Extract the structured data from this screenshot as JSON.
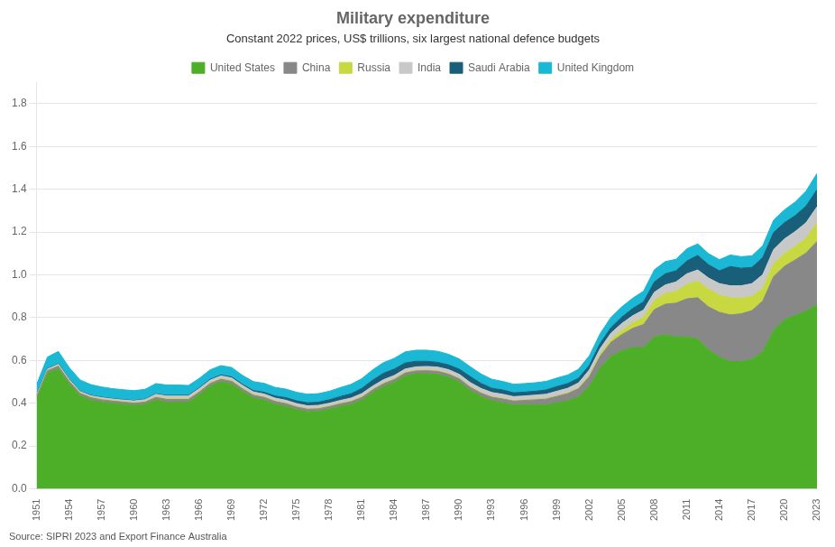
{
  "chart_data": {
    "type": "area",
    "stacked": true,
    "title": "Military expenditure",
    "subtitle": "Constant 2022 prices, US$ trillions, six largest national defence budgets",
    "source": "Source: SIPRI 2023 and Export Finance Australia",
    "x": [
      1951,
      1952,
      1953,
      1954,
      1955,
      1956,
      1957,
      1958,
      1959,
      1960,
      1961,
      1962,
      1963,
      1964,
      1965,
      1966,
      1967,
      1968,
      1969,
      1970,
      1971,
      1972,
      1973,
      1974,
      1975,
      1976,
      1977,
      1978,
      1979,
      1980,
      1981,
      1982,
      1983,
      1984,
      1985,
      1986,
      1987,
      1988,
      1989,
      1990,
      1991,
      1992,
      1993,
      1994,
      1995,
      1996,
      1997,
      1998,
      1999,
      2000,
      2001,
      2002,
      2003,
      2004,
      2005,
      2006,
      2007,
      2008,
      2009,
      2010,
      2011,
      2012,
      2013,
      2014,
      2015,
      2016,
      2017,
      2018,
      2019,
      2020,
      2021,
      2022,
      2023
    ],
    "series": [
      {
        "name": "United States",
        "color": "#4daf27",
        "values": [
          0.42,
          0.54,
          0.56,
          0.49,
          0.435,
          0.415,
          0.405,
          0.4,
          0.395,
          0.39,
          0.395,
          0.415,
          0.405,
          0.405,
          0.405,
          0.44,
          0.48,
          0.5,
          0.49,
          0.455,
          0.425,
          0.415,
          0.395,
          0.385,
          0.37,
          0.36,
          0.362,
          0.372,
          0.385,
          0.395,
          0.415,
          0.45,
          0.478,
          0.498,
          0.528,
          0.538,
          0.538,
          0.535,
          0.522,
          0.5,
          0.46,
          0.432,
          0.412,
          0.402,
          0.392,
          0.392,
          0.392,
          0.392,
          0.402,
          0.412,
          0.43,
          0.48,
          0.565,
          0.62,
          0.645,
          0.66,
          0.66,
          0.71,
          0.72,
          0.71,
          0.71,
          0.7,
          0.65,
          0.615,
          0.595,
          0.595,
          0.605,
          0.64,
          0.74,
          0.79,
          0.81,
          0.83,
          0.86
        ]
      },
      {
        "name": "China",
        "color": "#888888",
        "values": [
          0.01,
          0.012,
          0.013,
          0.012,
          0.011,
          0.011,
          0.011,
          0.01,
          0.01,
          0.01,
          0.01,
          0.012,
          0.013,
          0.013,
          0.013,
          0.012,
          0.012,
          0.012,
          0.012,
          0.012,
          0.012,
          0.012,
          0.013,
          0.013,
          0.012,
          0.012,
          0.012,
          0.012,
          0.012,
          0.012,
          0.012,
          0.012,
          0.013,
          0.013,
          0.013,
          0.013,
          0.014,
          0.014,
          0.014,
          0.014,
          0.015,
          0.015,
          0.016,
          0.018,
          0.018,
          0.021,
          0.024,
          0.027,
          0.03,
          0.033,
          0.038,
          0.044,
          0.055,
          0.065,
          0.076,
          0.09,
          0.108,
          0.128,
          0.143,
          0.158,
          0.178,
          0.193,
          0.2,
          0.21,
          0.218,
          0.223,
          0.228,
          0.238,
          0.252,
          0.25,
          0.26,
          0.272,
          0.296
        ]
      },
      {
        "name": "Russia",
        "color": "#c8d840",
        "values": [
          0.003,
          0.003,
          0.003,
          0.003,
          0.003,
          0.003,
          0.003,
          0.003,
          0.003,
          0.003,
          0.003,
          0.003,
          0.003,
          0.003,
          0.003,
          0.003,
          0.003,
          0.003,
          0.003,
          0.003,
          0.003,
          0.003,
          0.003,
          0.003,
          0.003,
          0.003,
          0.003,
          0.003,
          0.003,
          0.003,
          0.003,
          0.003,
          0.003,
          0.003,
          0.003,
          0.003,
          0.003,
          0.003,
          0.003,
          0.003,
          0.003,
          0.003,
          0.003,
          0.003,
          0.003,
          0.003,
          0.003,
          0.003,
          0.003,
          0.003,
          0.004,
          0.006,
          0.008,
          0.013,
          0.02,
          0.026,
          0.033,
          0.043,
          0.05,
          0.055,
          0.068,
          0.078,
          0.083,
          0.08,
          0.08,
          0.073,
          0.066,
          0.06,
          0.06,
          0.06,
          0.063,
          0.07,
          0.088
        ]
      },
      {
        "name": "India",
        "color": "#c8c8c8",
        "values": [
          0.005,
          0.005,
          0.006,
          0.006,
          0.006,
          0.006,
          0.007,
          0.007,
          0.007,
          0.008,
          0.009,
          0.012,
          0.013,
          0.013,
          0.013,
          0.013,
          0.013,
          0.013,
          0.013,
          0.013,
          0.013,
          0.013,
          0.013,
          0.013,
          0.013,
          0.013,
          0.013,
          0.013,
          0.013,
          0.014,
          0.015,
          0.015,
          0.016,
          0.016,
          0.016,
          0.016,
          0.017,
          0.017,
          0.018,
          0.018,
          0.019,
          0.019,
          0.019,
          0.019,
          0.018,
          0.018,
          0.019,
          0.02,
          0.021,
          0.022,
          0.023,
          0.026,
          0.028,
          0.03,
          0.032,
          0.033,
          0.035,
          0.038,
          0.04,
          0.044,
          0.049,
          0.052,
          0.052,
          0.054,
          0.056,
          0.058,
          0.06,
          0.063,
          0.066,
          0.068,
          0.07,
          0.072,
          0.074
        ]
      },
      {
        "name": "Saudi Arabia",
        "color": "#1a5f7a",
        "values": [
          0.002,
          0.002,
          0.002,
          0.002,
          0.002,
          0.002,
          0.002,
          0.002,
          0.002,
          0.002,
          0.002,
          0.002,
          0.003,
          0.003,
          0.003,
          0.003,
          0.004,
          0.004,
          0.005,
          0.005,
          0.006,
          0.008,
          0.01,
          0.012,
          0.013,
          0.014,
          0.015,
          0.016,
          0.018,
          0.02,
          0.024,
          0.028,
          0.03,
          0.03,
          0.028,
          0.026,
          0.024,
          0.022,
          0.022,
          0.024,
          0.028,
          0.024,
          0.02,
          0.02,
          0.018,
          0.018,
          0.018,
          0.02,
          0.022,
          0.022,
          0.022,
          0.022,
          0.024,
          0.026,
          0.03,
          0.034,
          0.038,
          0.048,
          0.052,
          0.052,
          0.06,
          0.068,
          0.062,
          0.06,
          0.09,
          0.082,
          0.076,
          0.08,
          0.08,
          0.076,
          0.074,
          0.078,
          0.08
        ]
      },
      {
        "name": "United Kingdom",
        "color": "#1ab8d4",
        "values": [
          0.048,
          0.054,
          0.058,
          0.054,
          0.052,
          0.05,
          0.048,
          0.046,
          0.046,
          0.046,
          0.046,
          0.048,
          0.048,
          0.048,
          0.046,
          0.045,
          0.044,
          0.044,
          0.044,
          0.042,
          0.042,
          0.042,
          0.04,
          0.04,
          0.04,
          0.04,
          0.04,
          0.04,
          0.042,
          0.044,
          0.046,
          0.048,
          0.05,
          0.05,
          0.052,
          0.052,
          0.052,
          0.052,
          0.05,
          0.048,
          0.046,
          0.044,
          0.042,
          0.04,
          0.04,
          0.04,
          0.04,
          0.04,
          0.04,
          0.04,
          0.042,
          0.044,
          0.046,
          0.048,
          0.048,
          0.048,
          0.05,
          0.057,
          0.057,
          0.054,
          0.057,
          0.054,
          0.052,
          0.052,
          0.054,
          0.054,
          0.054,
          0.056,
          0.058,
          0.06,
          0.064,
          0.07,
          0.076
        ]
      }
    ],
    "xlim": [
      1951,
      2023
    ],
    "xticks": [
      1951,
      1954,
      1957,
      1960,
      1963,
      1966,
      1969,
      1972,
      1975,
      1978,
      1981,
      1984,
      1987,
      1990,
      1993,
      1996,
      1999,
      2002,
      2005,
      2008,
      2011,
      2014,
      2017,
      2020,
      2023
    ],
    "ylim": [
      0.0,
      1.9
    ],
    "yticks": [
      {
        "value": 0,
        "label": "0.0"
      },
      0.2,
      0.4,
      0.6,
      0.8,
      {
        "value": 1,
        "label": "1.0"
      },
      1.2,
      1.4,
      1.6,
      1.8
    ],
    "grid": "y",
    "legend": "top"
  }
}
